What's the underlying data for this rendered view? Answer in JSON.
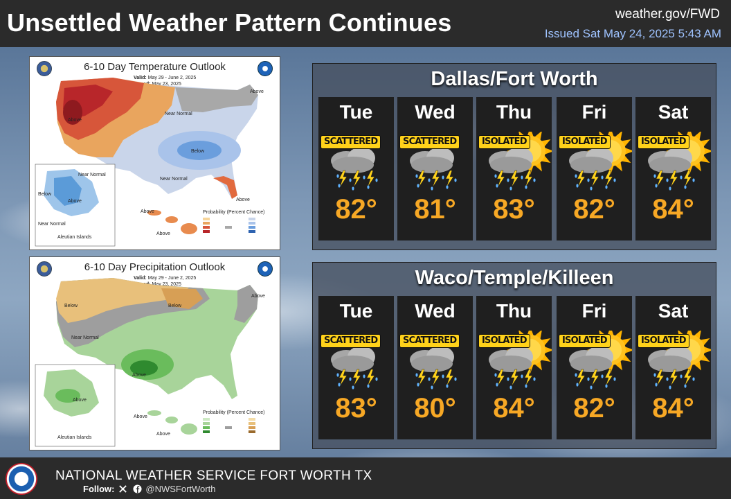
{
  "header": {
    "title": "Unsettled Weather Pattern Continues",
    "site": "weather.gov/FWD",
    "issued": "Issued Sat May 24, 2025 5:43 AM"
  },
  "temperature_outlook": {
    "title": "6-10 Day Temperature Outlook",
    "valid_label": "Valid:",
    "valid": "May 29 - June 2, 2025",
    "issued_label": "Issued:",
    "issued": "May 23, 2025",
    "labels": [
      "Above",
      "Near Normal",
      "Above",
      "Below",
      "Near Normal",
      "Above",
      "Near Normal",
      "Below",
      "Above",
      "Above",
      "Near Normal",
      "Aleutian Islands",
      "Above"
    ],
    "legend_title": "Probability (Percent Chance)"
  },
  "precipitation_outlook": {
    "title": "6-10 Day Precipitation Outlook",
    "valid_label": "Valid:",
    "valid": "May 29 - June 2, 2025",
    "issued_label": "Issued:",
    "issued": "May 23, 2025",
    "labels": [
      "Below",
      "Below",
      "Near Normal",
      "Above",
      "Above",
      "Above",
      "Above",
      "Above",
      "Aleutian Islands"
    ],
    "legend_title": "Probability (Percent Chance)"
  },
  "forecasts": [
    {
      "city": "Dallas/Fort Worth",
      "days": [
        {
          "day": "Tue",
          "coverage": "SCATTERED",
          "temp": "82°",
          "sun": false
        },
        {
          "day": "Wed",
          "coverage": "SCATTERED",
          "temp": "81°",
          "sun": false
        },
        {
          "day": "Thu",
          "coverage": "ISOLATED",
          "temp": "83°",
          "sun": true
        },
        {
          "day": "Fri",
          "coverage": "ISOLATED",
          "temp": "82°",
          "sun": true
        },
        {
          "day": "Sat",
          "coverage": "ISOLATED",
          "temp": "84°",
          "sun": true
        }
      ]
    },
    {
      "city": "Waco/Temple/Killeen",
      "days": [
        {
          "day": "Tue",
          "coverage": "SCATTERED",
          "temp": "83°",
          "sun": false
        },
        {
          "day": "Wed",
          "coverage": "SCATTERED",
          "temp": "80°",
          "sun": false
        },
        {
          "day": "Thu",
          "coverage": "ISOLATED",
          "temp": "84°",
          "sun": true
        },
        {
          "day": "Fri",
          "coverage": "ISOLATED",
          "temp": "82°",
          "sun": true
        },
        {
          "day": "Sat",
          "coverage": "ISOLATED",
          "temp": "84°",
          "sun": true
        }
      ]
    }
  ],
  "footer": {
    "agency": "NATIONAL WEATHER SERVICE FORT WORTH TX",
    "follow_label": "Follow:",
    "handle": "@NWSFortWorth",
    "icons": [
      "x-icon",
      "facebook-icon"
    ]
  }
}
